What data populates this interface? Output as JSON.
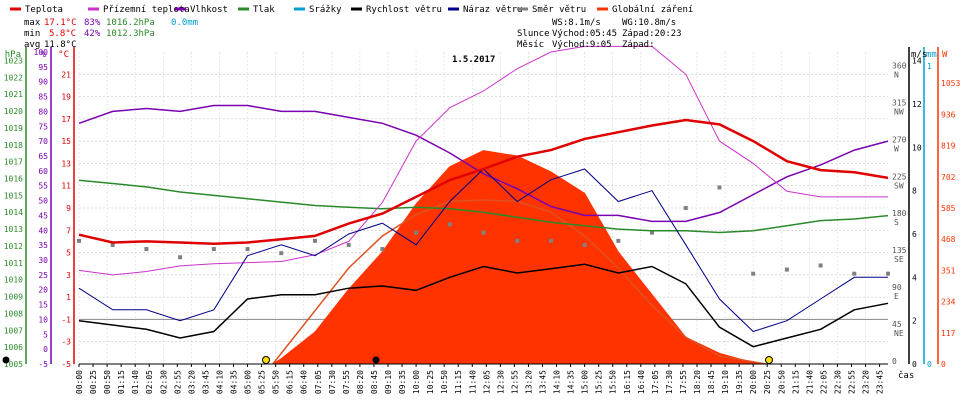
{
  "colors": {
    "temperature": "#e00000",
    "dewpoint": "#cc33cc",
    "humidity": "#7a00b0",
    "pressure": "#2a8a2a",
    "precip": "#00a0d0",
    "wind_speed": "#000000",
    "gust": "#000088",
    "wind_dir": "#808080",
    "radiation": "#ff3300",
    "sun_curve": "#e05020"
  },
  "legend": [
    {
      "label": "Teplota",
      "color": "#e00000"
    },
    {
      "label": "Přízemní teplota",
      "color": "#cc33cc"
    },
    {
      "label": "Vlhkost",
      "color": "#7a00b0"
    },
    {
      "label": "Tlak",
      "color": "#2a8a2a"
    },
    {
      "label": "Srážky",
      "color": "#00a0d0"
    },
    {
      "label": "Rychlost větru",
      "color": "#000000"
    },
    {
      "label": "Náraz větru",
      "color": "#000088"
    },
    {
      "label": "Směr větru",
      "color": "#808080"
    },
    {
      "label": "Globální záření",
      "color": "#ff3300"
    }
  ],
  "stats": {
    "max_label": "max",
    "max_temp": "17.1°C",
    "max_hum": "83%",
    "max_press": "1016.2hPa",
    "precip": "0.0mm",
    "min_label": "min",
    "min_temp": "5.8°C",
    "min_hum": "42%",
    "min_press": "1012.3hPa",
    "avg_label": "avg",
    "avg_temp": "11.8°C"
  },
  "info": {
    "ws": "WS:8.1m/s",
    "wg": "WG:10.8m/s",
    "sun_label": "Slunce",
    "sunrise": "Východ:05:45",
    "sunset": "Západ:20:23",
    "moon_label": "Měsíc",
    "moonrise": "Východ:9:05",
    "moonset": "Západ:"
  },
  "chart_data": {
    "type": "line",
    "title": "1.5.2017",
    "xlabel": "čas",
    "x_ticks": [
      "00:00",
      "00:25",
      "00:50",
      "01:15",
      "01:40",
      "02:05",
      "02:30",
      "02:55",
      "03:20",
      "03:45",
      "04:10",
      "04:35",
      "05:00",
      "05:25",
      "05:50",
      "06:15",
      "06:40",
      "07:05",
      "07:30",
      "07:55",
      "08:20",
      "08:45",
      "09:10",
      "09:35",
      "10:00",
      "10:25",
      "10:50",
      "11:15",
      "11:40",
      "12:05",
      "12:30",
      "12:55",
      "13:20",
      "13:45",
      "14:10",
      "14:35",
      "15:00",
      "15:25",
      "15:50",
      "16:15",
      "16:40",
      "17:05",
      "17:30",
      "17:55",
      "18:20",
      "18:45",
      "19:10",
      "19:35",
      "20:00",
      "20:25",
      "20:50",
      "21:15",
      "21:40",
      "22:05",
      "22:30",
      "22:55",
      "23:20",
      "23:45"
    ],
    "axes": {
      "pressure_hpa": {
        "label": "hPa",
        "range": [
          1005,
          1023
        ],
        "ticks": [
          "1023",
          "1022",
          "1021",
          "1020",
          "1019",
          "1018",
          "1017",
          "1016",
          "1015",
          "1014",
          "1013",
          "1012",
          "1011",
          "1010",
          "1009",
          "1008",
          "1007",
          "1006",
          "1005"
        ]
      },
      "humidity_pct": {
        "label": "%",
        "range": [
          -5,
          100
        ],
        "ticks": [
          "100",
          "95",
          "90",
          "85",
          "80",
          "75",
          "70",
          "65",
          "60",
          "55",
          "50",
          "45",
          "40",
          "35",
          "30",
          "25",
          "20",
          "15",
          "10",
          "5",
          "0",
          "-5"
        ]
      },
      "temperature_c": {
        "label": "°C",
        "range": [
          -5,
          23
        ],
        "ticks": [
          "21",
          "19",
          "17",
          "15",
          "13",
          "11",
          "9",
          "7",
          "5",
          "3",
          "1",
          "-1",
          "-3",
          "-5"
        ]
      },
      "wind_ms": {
        "label": "m/s",
        "range": [
          0,
          14
        ],
        "ticks": [
          "14",
          "12",
          "10",
          "8",
          "6",
          "4",
          "2",
          "0"
        ]
      },
      "precip_mm": {
        "label": "mm",
        "range": [
          0,
          1
        ],
        "ticks": [
          "1",
          "0"
        ]
      },
      "wind_dir": {
        "range": [
          0,
          360
        ],
        "ticks": [
          {
            "v": "360",
            "d": "N"
          },
          {
            "v": "315",
            "d": "NW"
          },
          {
            "v": "270",
            "d": "W"
          },
          {
            "v": "225",
            "d": "SW"
          },
          {
            "v": "180",
            "d": "S"
          },
          {
            "v": "135",
            "d": "SE"
          },
          {
            "v": "90",
            "d": "E"
          },
          {
            "v": "45",
            "d": "NE"
          },
          {
            "v": "0",
            "d": ""
          }
        ]
      },
      "radiation_w": {
        "label": "W",
        "range": [
          0,
          1170
        ],
        "ticks": [
          "1053",
          "936",
          "819",
          "702",
          "585",
          "468",
          "351",
          "234",
          "117",
          "0"
        ]
      }
    },
    "series": [
      {
        "name": "Teplota",
        "unit": "°C",
        "x": [
          0,
          1,
          2,
          3,
          4,
          5,
          6,
          7,
          8,
          9,
          10,
          11,
          12,
          13,
          14,
          15,
          16,
          17,
          18,
          19,
          20,
          21,
          22,
          23,
          24
        ],
        "values": [
          6.6,
          5.9,
          6.0,
          5.9,
          5.8,
          5.9,
          6.2,
          6.5,
          7.6,
          8.5,
          10.0,
          11.5,
          12.5,
          13.6,
          14.2,
          15.2,
          15.8,
          16.4,
          16.9,
          16.5,
          15.0,
          13.2,
          12.4,
          12.2,
          11.7
        ]
      },
      {
        "name": "Přízemní teplota",
        "unit": "°C",
        "x": [
          0,
          1,
          2,
          3,
          4,
          5,
          6,
          7,
          8,
          9,
          10,
          11,
          12,
          13,
          14,
          15,
          16,
          17,
          18,
          19,
          20,
          21,
          22,
          23,
          24
        ],
        "values": [
          3.4,
          3.0,
          3.3,
          3.8,
          4.0,
          4.1,
          4.2,
          4.8,
          6.0,
          9.5,
          15.0,
          18.0,
          19.5,
          21.5,
          23.0,
          23.5,
          23.5,
          23.5,
          21.0,
          15.0,
          13.0,
          10.5,
          10.0,
          10.0,
          10.0
        ]
      },
      {
        "name": "Vlhkost",
        "unit": "%",
        "x": [
          0,
          1,
          2,
          3,
          4,
          5,
          6,
          7,
          8,
          9,
          10,
          11,
          12,
          13,
          14,
          15,
          16,
          17,
          18,
          19,
          20,
          21,
          22,
          23,
          24
        ],
        "values": [
          76,
          80,
          81,
          80,
          82,
          82,
          80,
          80,
          78,
          76,
          72,
          66,
          59,
          54,
          48,
          45,
          45,
          43,
          43,
          46,
          52,
          58,
          62,
          67,
          70
        ]
      },
      {
        "name": "Tlak",
        "unit": "hPa",
        "x": [
          0,
          1,
          2,
          3,
          4,
          5,
          6,
          7,
          8,
          9,
          10,
          11,
          12,
          13,
          14,
          15,
          16,
          17,
          18,
          19,
          20,
          21,
          22,
          23,
          24
        ],
        "values": [
          1015.9,
          1015.7,
          1015.5,
          1015.2,
          1015.0,
          1014.8,
          1014.6,
          1014.4,
          1014.3,
          1014.2,
          1014.3,
          1014.2,
          1014.0,
          1013.7,
          1013.4,
          1013.2,
          1013.0,
          1012.9,
          1012.9,
          1012.8,
          1012.9,
          1013.2,
          1013.5,
          1013.6,
          1013.8
        ]
      },
      {
        "name": "Rychlost větru",
        "unit": "m/s",
        "x": [
          0,
          1,
          2,
          3,
          4,
          5,
          6,
          7,
          8,
          9,
          10,
          11,
          12,
          13,
          14,
          15,
          16,
          17,
          18,
          19,
          20,
          21,
          22,
          23,
          24
        ],
        "values": [
          2.0,
          1.8,
          1.6,
          1.2,
          1.5,
          3.0,
          3.2,
          3.2,
          3.5,
          3.6,
          3.4,
          4.0,
          4.5,
          4.2,
          4.4,
          4.6,
          4.2,
          4.5,
          3.7,
          1.7,
          0.8,
          1.2,
          1.6,
          2.5,
          2.8
        ]
      },
      {
        "name": "Náraz větru",
        "unit": "m/s",
        "x": [
          0,
          1,
          2,
          3,
          4,
          5,
          6,
          7,
          8,
          9,
          10,
          11,
          12,
          13,
          14,
          15,
          16,
          17,
          18,
          19,
          20,
          21,
          22,
          23,
          24
        ],
        "values": [
          3.5,
          2.5,
          2.5,
          2.0,
          2.5,
          5.0,
          5.5,
          5.0,
          6.0,
          6.5,
          5.5,
          7.5,
          9.0,
          7.5,
          8.5,
          9.0,
          7.5,
          8.0,
          5.5,
          3.0,
          1.5,
          2.0,
          3.0,
          4.0,
          4.0
        ]
      },
      {
        "name": "Směr větru",
        "unit": "°",
        "x": [
          0,
          1,
          2,
          3,
          4,
          5,
          6,
          7,
          8,
          9,
          10,
          11,
          12,
          13,
          14,
          15,
          16,
          17,
          18,
          19,
          20,
          21,
          22,
          23,
          24
        ],
        "values": [
          150,
          145,
          140,
          130,
          140,
          140,
          135,
          150,
          145,
          140,
          160,
          170,
          160,
          150,
          150,
          145,
          150,
          160,
          190,
          215,
          110,
          115,
          120,
          110,
          110
        ]
      },
      {
        "name": "Globální záření",
        "unit": "W",
        "x": [
          5.75,
          6,
          7,
          8,
          9,
          10,
          11,
          12,
          13,
          14,
          15,
          16,
          17,
          18,
          19,
          20,
          20.4
        ],
        "values": [
          0,
          20,
          120,
          280,
          420,
          600,
          740,
          800,
          780,
          720,
          640,
          420,
          260,
          100,
          40,
          5,
          0
        ]
      }
    ],
    "sun_curve": {
      "x": [
        5.75,
        7,
        8,
        9,
        10,
        11,
        12,
        13,
        14,
        15,
        16,
        17,
        18,
        19,
        20.38
      ],
      "values": [
        0,
        200,
        360,
        480,
        560,
        610,
        615,
        610,
        570,
        480,
        360,
        220,
        100,
        30,
        0
      ]
    }
  }
}
